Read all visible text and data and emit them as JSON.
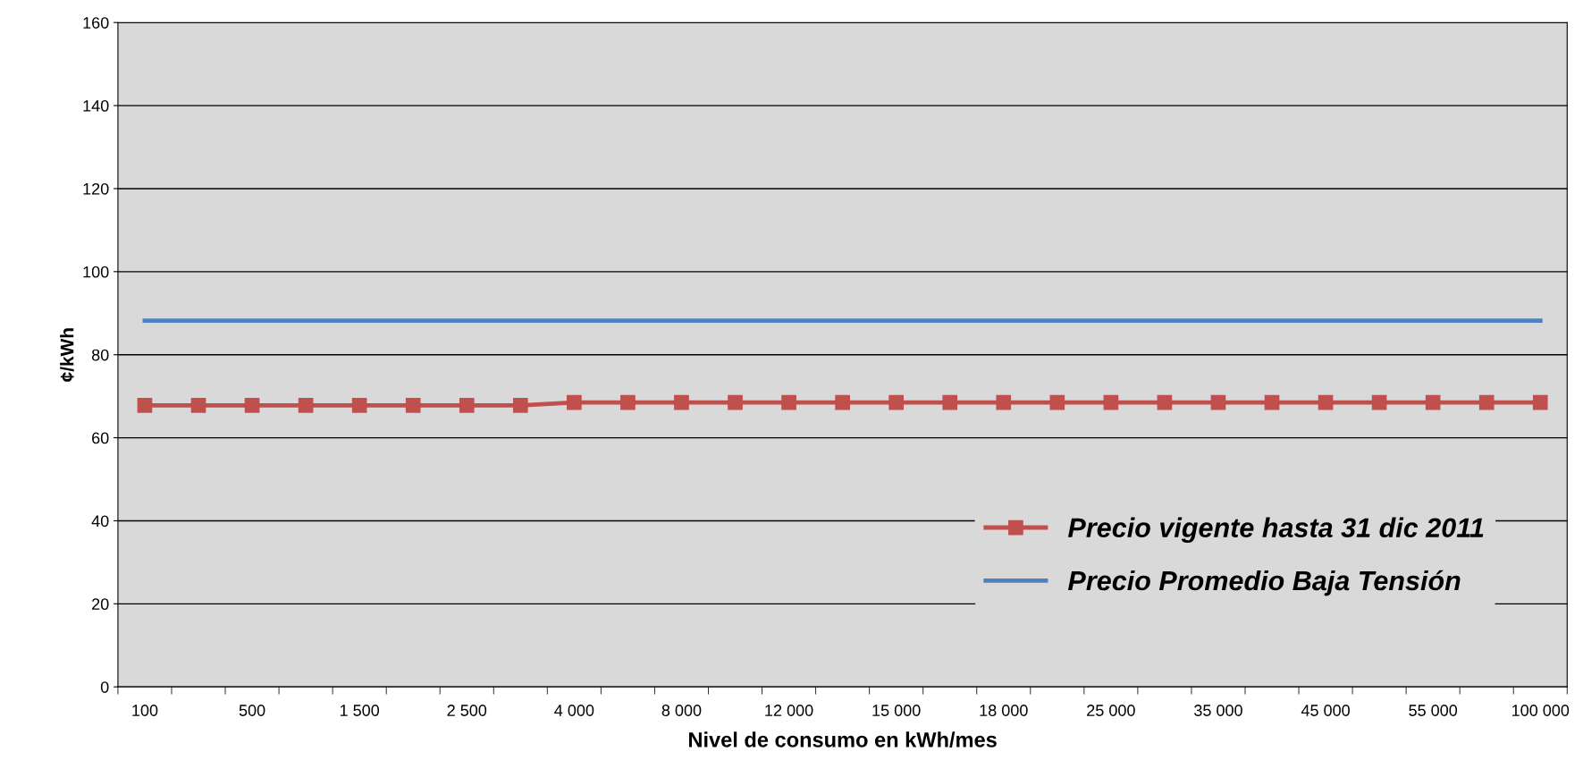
{
  "chart_data": {
    "type": "line",
    "xlabel": "Nivel de consumo en kWh/mes",
    "ylabel": "¢/kWh",
    "categories": [
      "100",
      null,
      "500",
      null,
      "1 500",
      null,
      "2 500",
      null,
      "4 000",
      null,
      "8 000",
      null,
      "12 000",
      null,
      "15 000",
      null,
      "18 000",
      null,
      "25 000",
      null,
      "35 000",
      null,
      "45 000",
      null,
      "55 000",
      null,
      "100 000"
    ],
    "series": [
      {
        "name": "Precio vigente hasta 31 dic 2011",
        "color": "#c0504d",
        "marker": "square",
        "values": [
          67.8,
          67.8,
          67.8,
          67.8,
          67.8,
          67.8,
          67.8,
          67.8,
          68.5,
          68.5,
          68.5,
          68.5,
          68.5,
          68.5,
          68.5,
          68.5,
          68.5,
          68.5,
          68.5,
          68.5,
          68.5,
          68.5,
          68.5,
          68.5,
          68.5,
          68.5,
          68.5
        ]
      },
      {
        "name": "Precio Promedio Baja Tensión",
        "color": "#4f81bd",
        "marker": "none",
        "values": [
          88.2,
          88.2,
          88.2,
          88.2,
          88.2,
          88.2,
          88.2,
          88.2,
          88.2,
          88.2,
          88.2,
          88.2,
          88.2,
          88.2,
          88.2,
          88.2,
          88.2,
          88.2,
          88.2,
          88.2,
          88.2,
          88.2,
          88.2,
          88.2,
          88.2,
          88.2,
          88.2
        ]
      }
    ],
    "ylim": [
      0,
      160
    ],
    "yticks": [
      0,
      20,
      40,
      60,
      80,
      100,
      120,
      140,
      160
    ],
    "grid": "y",
    "legend": "bottom right"
  }
}
